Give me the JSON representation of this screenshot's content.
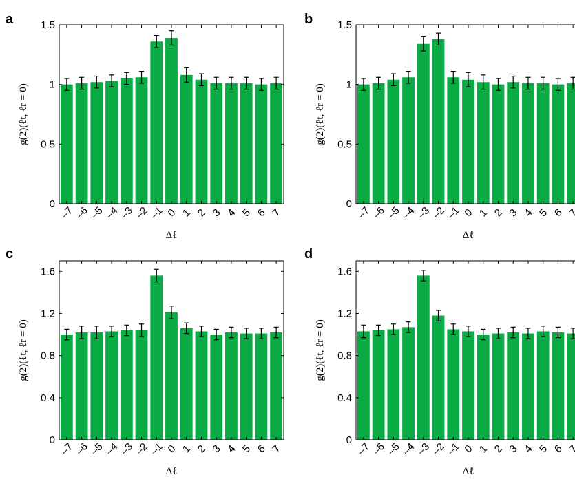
{
  "chart_data": [
    {
      "panel_label": "a",
      "type": "bar",
      "xlabel": "Δℓ",
      "ylabel": "g(2)(ℓt, ℓr = 0)",
      "ylim": [
        0,
        1.5
      ],
      "yticks": [
        0,
        0.5,
        1,
        1.5
      ],
      "ytick_labels": [
        "0",
        "0.5",
        "1",
        "1.5"
      ],
      "categories": [
        "–7",
        "–6",
        "–5",
        "–4",
        "–3",
        "–2",
        "–1",
        "0",
        "1",
        "2",
        "3",
        "4",
        "5",
        "6",
        "7"
      ],
      "values": [
        1.0,
        1.01,
        1.02,
        1.03,
        1.05,
        1.06,
        1.36,
        1.39,
        1.08,
        1.04,
        1.01,
        1.01,
        1.01,
        1.0,
        1.01
      ],
      "errors": [
        0.05,
        0.05,
        0.05,
        0.05,
        0.05,
        0.05,
        0.05,
        0.06,
        0.06,
        0.05,
        0.05,
        0.05,
        0.05,
        0.05,
        0.05
      ],
      "color": "#0aaa45",
      "grid": false
    },
    {
      "panel_label": "b",
      "type": "bar",
      "xlabel": "Δℓ",
      "ylabel": "g(2)(ℓt, ℓr = 0)",
      "ylim": [
        0,
        1.5
      ],
      "yticks": [
        0,
        0.5,
        1,
        1.5
      ],
      "ytick_labels": [
        "0",
        "0.5",
        "1",
        "1.5"
      ],
      "categories": [
        "–7",
        "–6",
        "–5",
        "–4",
        "–3",
        "–2",
        "–1",
        "0",
        "1",
        "2",
        "3",
        "4",
        "5",
        "6",
        "7"
      ],
      "values": [
        1.0,
        1.01,
        1.04,
        1.06,
        1.34,
        1.38,
        1.06,
        1.04,
        1.02,
        1.0,
        1.02,
        1.01,
        1.01,
        1.0,
        1.01
      ],
      "errors": [
        0.05,
        0.05,
        0.05,
        0.05,
        0.06,
        0.05,
        0.05,
        0.06,
        0.06,
        0.05,
        0.05,
        0.05,
        0.05,
        0.05,
        0.05
      ],
      "color": "#0aaa45",
      "grid": false
    },
    {
      "panel_label": "c",
      "type": "bar",
      "xlabel": "Δℓ",
      "ylabel": "g(2)(ℓt, ℓr = 0)",
      "ylim": [
        0,
        1.7
      ],
      "yticks": [
        0,
        0.4,
        0.8,
        1.2,
        1.6
      ],
      "ytick_labels": [
        "0",
        "0.4",
        "0.8",
        "1.2",
        "1.6"
      ],
      "categories": [
        "–7",
        "–6",
        "–5",
        "–4",
        "–3",
        "–2",
        "–1",
        "0",
        "1",
        "2",
        "3",
        "4",
        "5",
        "6",
        "7"
      ],
      "values": [
        1.0,
        1.02,
        1.02,
        1.03,
        1.04,
        1.04,
        1.56,
        1.21,
        1.06,
        1.03,
        1.0,
        1.02,
        1.01,
        1.01,
        1.02
      ],
      "errors": [
        0.05,
        0.06,
        0.06,
        0.05,
        0.05,
        0.06,
        0.06,
        0.06,
        0.05,
        0.05,
        0.05,
        0.05,
        0.05,
        0.05,
        0.05
      ],
      "color": "#0aaa45",
      "grid": false
    },
    {
      "panel_label": "d",
      "type": "bar",
      "xlabel": "Δℓ",
      "ylabel": "g(2)(ℓt, ℓr = 0)",
      "ylim": [
        0,
        1.7
      ],
      "yticks": [
        0,
        0.4,
        0.8,
        1.2,
        1.6
      ],
      "ytick_labels": [
        "0",
        "0.4",
        "0.8",
        "1.2",
        "1.6"
      ],
      "categories": [
        "–7",
        "–6",
        "–5",
        "–4",
        "–3",
        "–2",
        "–1",
        "0",
        "1",
        "2",
        "3",
        "4",
        "5",
        "6",
        "7"
      ],
      "values": [
        1.03,
        1.04,
        1.05,
        1.07,
        1.56,
        1.18,
        1.05,
        1.03,
        1.0,
        1.01,
        1.02,
        1.01,
        1.03,
        1.02,
        1.01
      ],
      "errors": [
        0.06,
        0.05,
        0.05,
        0.05,
        0.05,
        0.05,
        0.05,
        0.05,
        0.05,
        0.05,
        0.05,
        0.05,
        0.05,
        0.05,
        0.05
      ],
      "color": "#0aaa45",
      "grid": false
    }
  ]
}
